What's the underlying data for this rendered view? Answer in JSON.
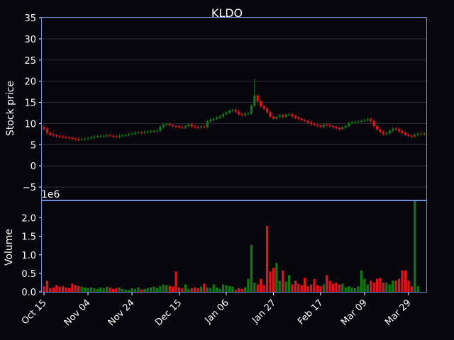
{
  "colors": {
    "background": "#07060c",
    "frame": "#6f8fd8",
    "grid": "#2e2c38",
    "up": "#0f7a0f",
    "down": "#e8101a",
    "text": "#ffffff"
  },
  "chart_data": {
    "type": "candlestick",
    "title": "KLDO",
    "price_panel": {
      "ylabel": "Stock price",
      "ylim": [
        -8,
        35
      ],
      "yticks": [
        "35",
        "30",
        "25",
        "20",
        "15",
        "10",
        "5",
        "0",
        "−5"
      ],
      "grid": true
    },
    "volume_panel": {
      "ylabel": "Volume",
      "scale_label": "1e6",
      "ylim": [
        0,
        2.45
      ],
      "yticks": [
        "2.0",
        "1.5",
        "1.0",
        "0.5",
        "0.0"
      ],
      "grid": false
    },
    "x_tick_labels": [
      "Oct 15",
      "Nov 04",
      "Nov 24",
      "Dec 15",
      "Jan 06",
      "Jan 27",
      "Feb 17",
      "Mar 09",
      "Mar 29"
    ],
    "x_tick_index": [
      0,
      14,
      28,
      43,
      58,
      73,
      88,
      102,
      116
    ],
    "close": [
      8.7,
      7.8,
      7.4,
      7.2,
      7.0,
      6.9,
      6.8,
      6.7,
      6.6,
      6.4,
      6.3,
      6.2,
      6.3,
      6.4,
      6.5,
      6.7,
      6.9,
      7.0,
      7.1,
      7.1,
      7.2,
      7.1,
      7.0,
      6.9,
      7.1,
      7.2,
      7.3,
      7.5,
      7.6,
      7.8,
      7.9,
      7.8,
      8.0,
      8.1,
      8.2,
      8.2,
      8.3,
      9.2,
      9.7,
      9.9,
      9.6,
      9.4,
      9.3,
      9.2,
      9.1,
      9.4,
      9.8,
      9.3,
      9.2,
      9.1,
      9.3,
      9.2,
      10.5,
      10.9,
      11.1,
      11.4,
      11.7,
      12.2,
      12.6,
      13.0,
      13.2,
      12.8,
      12.2,
      12.0,
      12.3,
      12.4,
      14.2,
      16.6,
      15.3,
      14.1,
      13.5,
      12.7,
      11.6,
      11.2,
      11.6,
      11.9,
      11.6,
      12.1,
      12.2,
      11.7,
      11.4,
      11.1,
      10.8,
      10.6,
      10.2,
      9.9,
      9.7,
      9.5,
      9.2,
      9.7,
      9.6,
      9.4,
      9.2,
      8.9,
      8.7,
      9.1,
      9.4,
      10.1,
      10.3,
      10.4,
      10.5,
      10.6,
      10.8,
      11.0,
      10.6,
      9.4,
      8.6,
      8.0,
      7.5,
      7.7,
      8.3,
      8.8,
      8.6,
      8.2,
      7.8,
      7.4,
      7.1,
      7.0,
      7.3,
      7.6,
      7.5,
      7.7
    ],
    "volume_millions": [
      0.15,
      0.3,
      0.1,
      0.12,
      0.18,
      0.14,
      0.15,
      0.12,
      0.1,
      0.22,
      0.18,
      0.16,
      0.14,
      0.12,
      0.1,
      0.12,
      0.1,
      0.08,
      0.12,
      0.1,
      0.14,
      0.12,
      0.08,
      0.1,
      0.12,
      0.08,
      0.06,
      0.05,
      0.1,
      0.08,
      0.12,
      0.06,
      0.08,
      0.1,
      0.12,
      0.14,
      0.1,
      0.16,
      0.2,
      0.18,
      0.16,
      0.14,
      0.55,
      0.12,
      0.1,
      0.2,
      0.08,
      0.1,
      0.12,
      0.1,
      0.14,
      0.22,
      0.12,
      0.1,
      0.2,
      0.12,
      0.08,
      0.2,
      0.18,
      0.16,
      0.14,
      0.06,
      0.1,
      0.08,
      0.12,
      0.35,
      1.27,
      0.25,
      0.2,
      0.35,
      0.18,
      1.78,
      0.55,
      0.65,
      0.78,
      0.3,
      0.58,
      0.28,
      0.45,
      0.2,
      0.3,
      0.22,
      0.18,
      0.38,
      0.15,
      0.2,
      0.35,
      0.18,
      0.15,
      0.2,
      0.45,
      0.3,
      0.22,
      0.25,
      0.2,
      0.22,
      0.12,
      0.15,
      0.12,
      0.1,
      0.15,
      0.58,
      0.35,
      0.2,
      0.3,
      0.25,
      0.35,
      0.38,
      0.25,
      0.25,
      0.2,
      0.3,
      0.3,
      0.35,
      0.58,
      0.58,
      0.3,
      0.15,
      2.45,
      0.15
    ]
  }
}
